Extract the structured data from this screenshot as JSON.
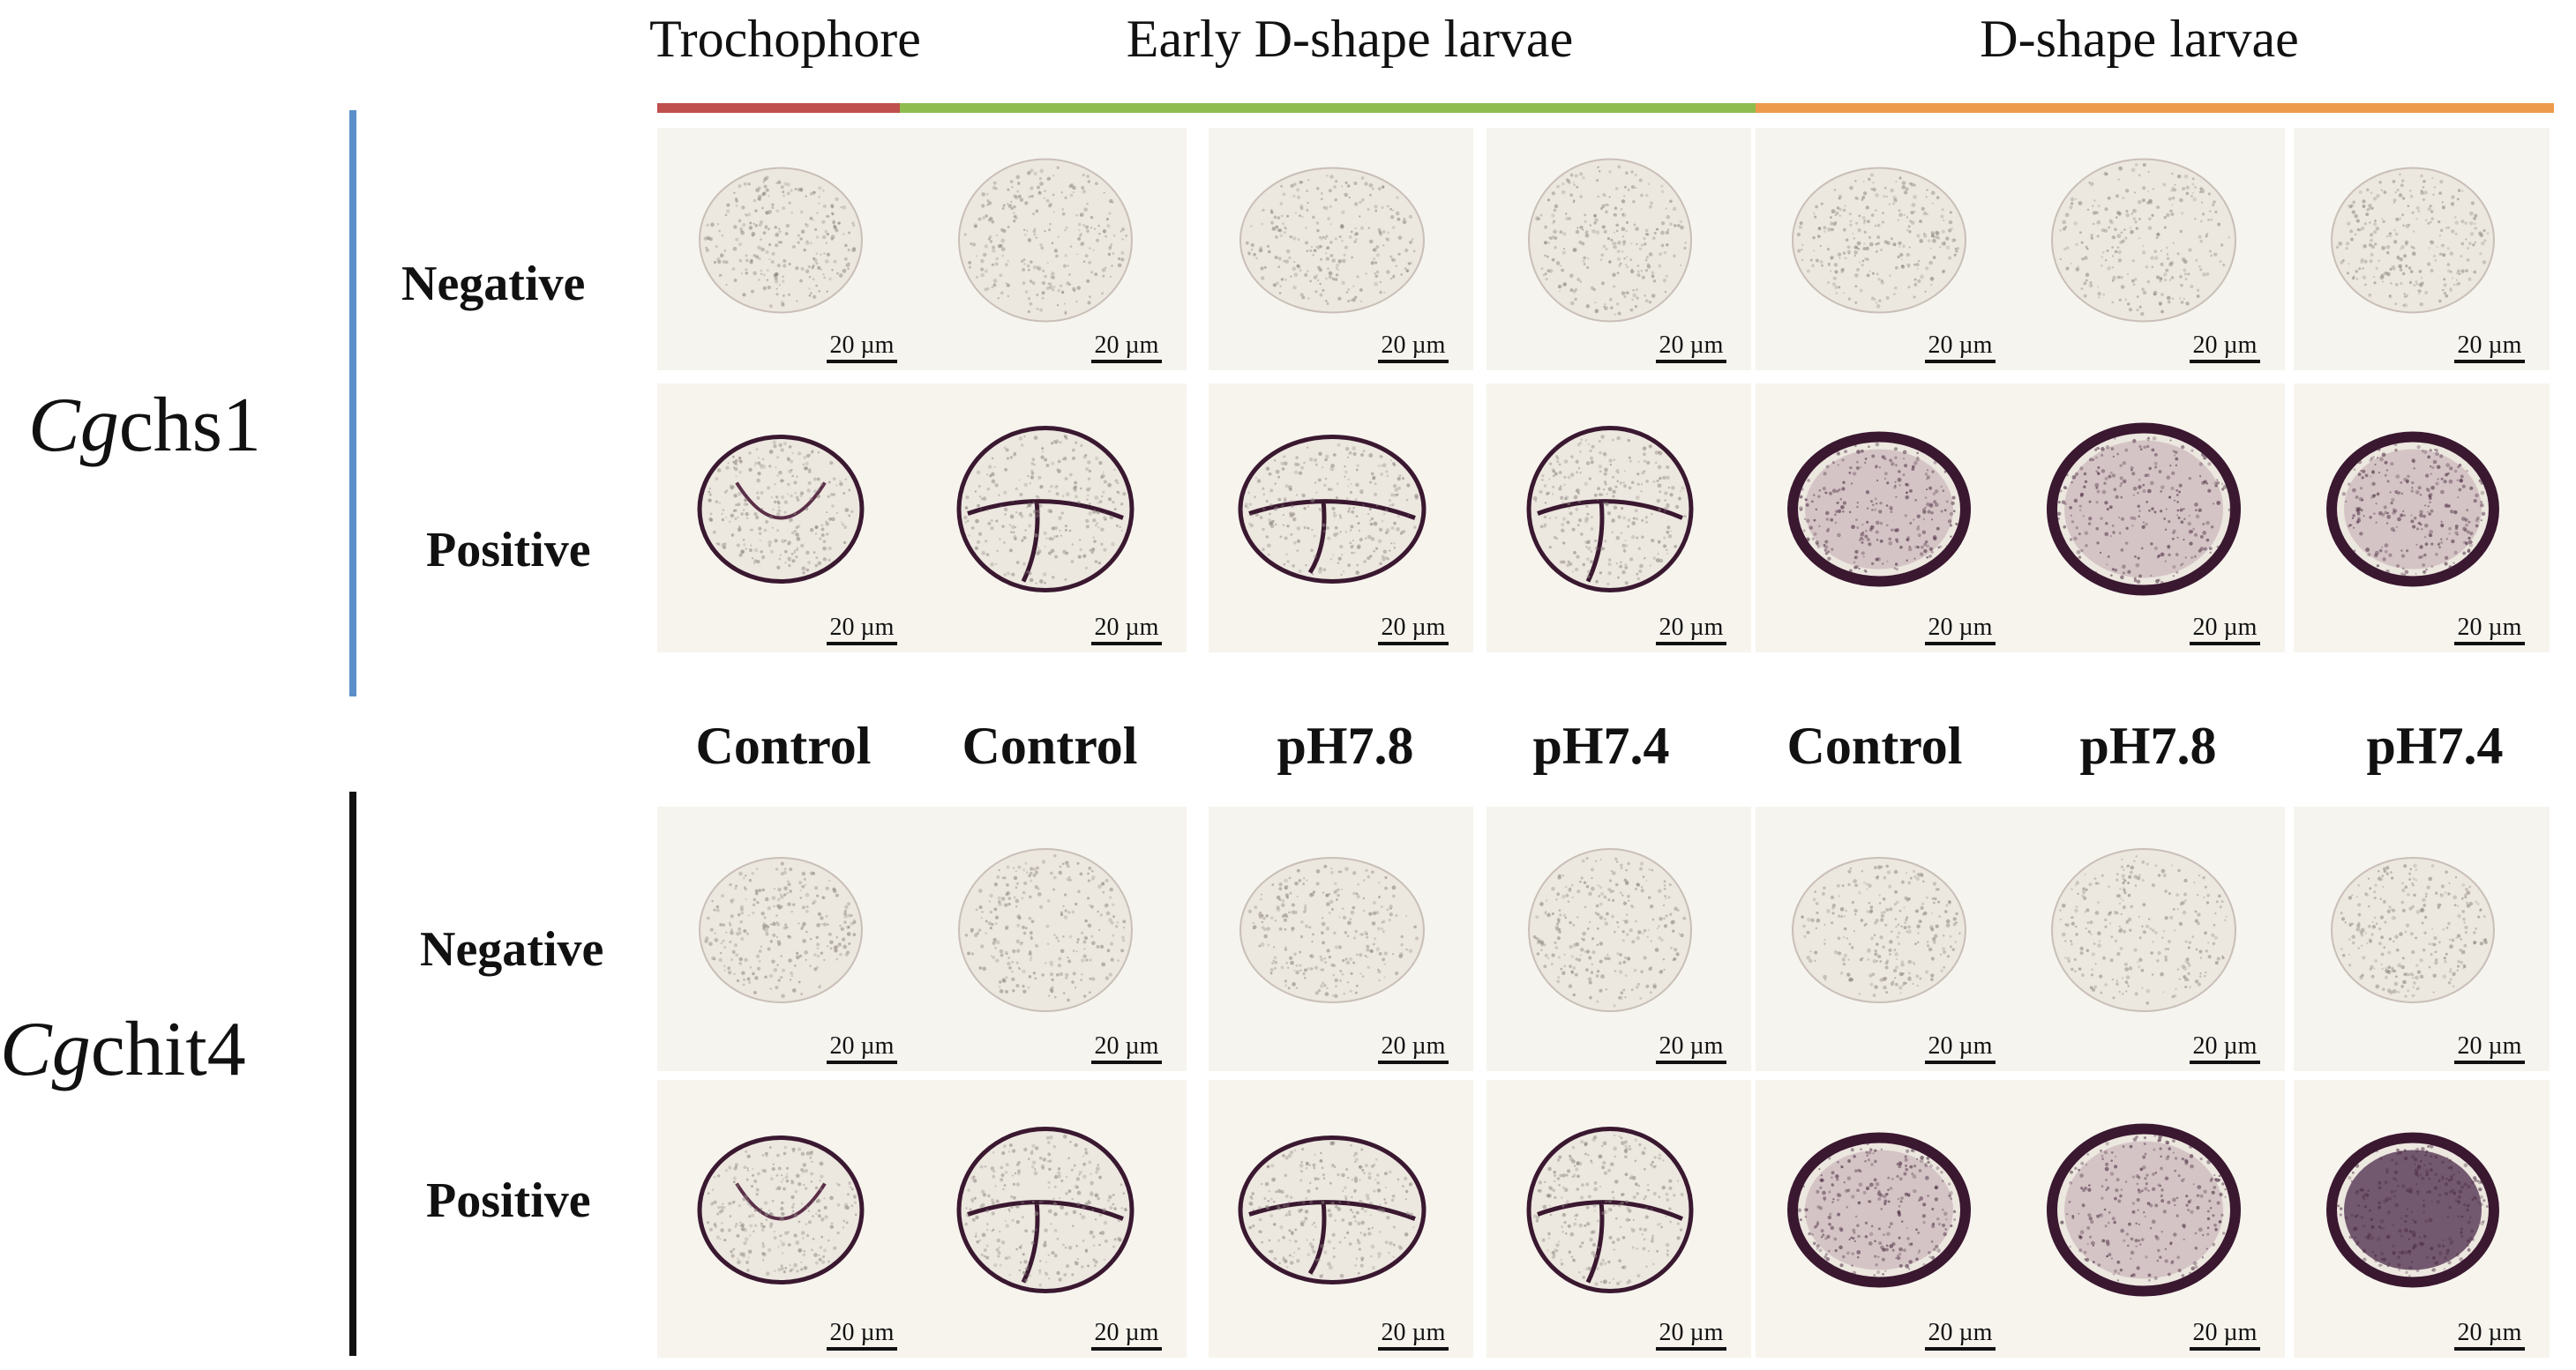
{
  "stages": [
    {
      "label": "Trochophore",
      "color": "#c0504d"
    },
    {
      "label": "Early D-shape larvae",
      "color": "#8fbc4f"
    },
    {
      "label": "D-shape larvae",
      "color": "#ee9a4d"
    }
  ],
  "genes": [
    {
      "prefix": "Cg",
      "name": "chs1",
      "line_color": "#5b8fc9"
    },
    {
      "prefix": "Cg",
      "name": "chit4",
      "line_color": "#111111"
    }
  ],
  "row_labels": {
    "negative": "Negative",
    "positive": "Positive"
  },
  "conditions": [
    "Control",
    "Control",
    "pH7.8",
    "pH7.4",
    "Control",
    "pH7.8",
    "pH7.4"
  ],
  "scale_bar_label": "20 µm"
}
